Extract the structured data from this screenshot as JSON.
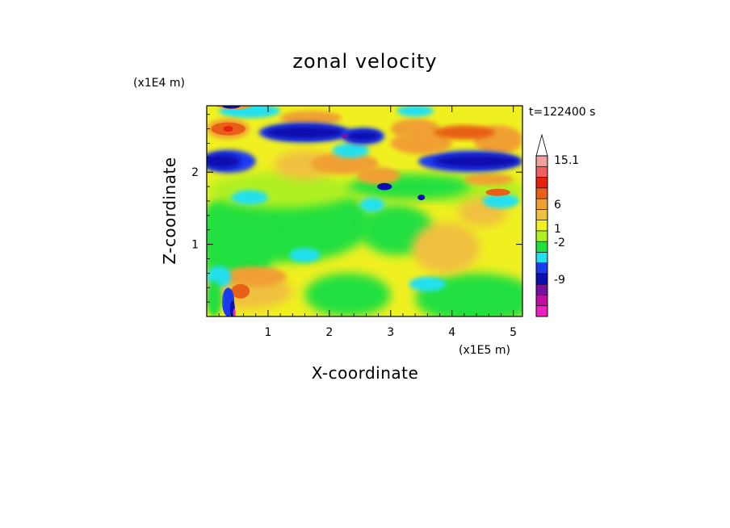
{
  "chart_data": {
    "type": "heatmap",
    "title": "zonal velocity",
    "xlabel": "X-coordinate",
    "ylabel": "Z-coordinate",
    "x_unit": "(x1E5 m)",
    "y_unit": "(x1E4 m)",
    "time_label": "t=122400 s",
    "xlim": [
      0,
      5.15
    ],
    "ylim": [
      0,
      2.92
    ],
    "x_ticks": [
      "1",
      "2",
      "3",
      "4",
      "5"
    ],
    "y_ticks": [
      "1",
      "2"
    ],
    "colorbar": {
      "labels": [
        "15.1",
        "6",
        "1",
        "-2",
        "-9"
      ],
      "extend": "max",
      "colors": [
        "#ee20c0",
        "#c010a0",
        "#7a10a0",
        "#0a10b0",
        "#1a3af0",
        "#20e0f0",
        "#20e040",
        "#b0f020",
        "#f0f020",
        "#f0c040",
        "#f0a030",
        "#e86018",
        "#e82010",
        "#f06060",
        "#f0a0a0"
      ]
    },
    "field_bands": [
      {
        "name": "upper negative jet west",
        "z": 2.15,
        "x_start": 0.0,
        "x_end": 0.7,
        "value": -6
      },
      {
        "name": "upper negative jet middle",
        "z": 2.55,
        "x_start": 0.9,
        "x_end": 2.9,
        "value": -6
      },
      {
        "name": "upper negative jet east",
        "z": 2.15,
        "x_start": 3.6,
        "x_end": 5.15,
        "value": -6
      },
      {
        "name": "top positive band",
        "z": 2.6,
        "x_start": 0.0,
        "x_end": 0.9,
        "value": 6
      },
      {
        "name": "near-surface positive",
        "z": 0.45,
        "x_start": 0.3,
        "x_end": 1.6,
        "value": 3
      }
    ]
  }
}
